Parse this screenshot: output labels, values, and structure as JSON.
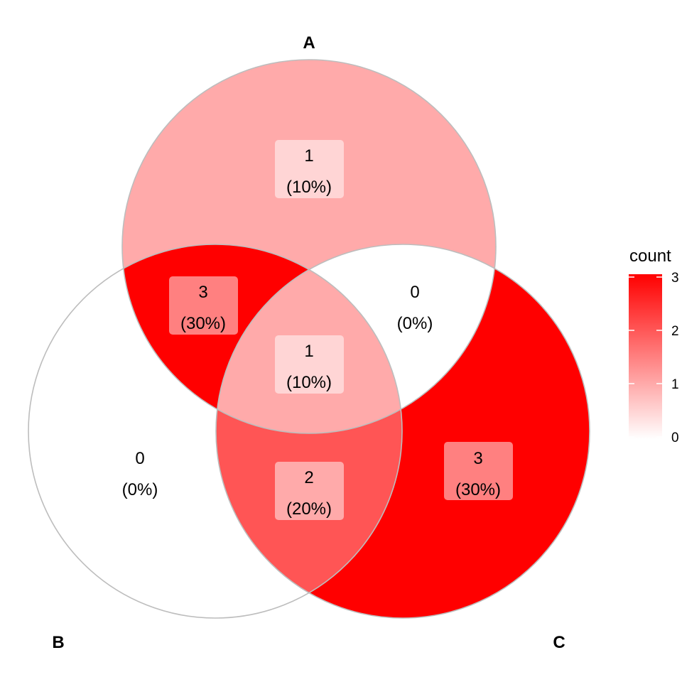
{
  "sets": [
    {
      "id": "A",
      "label": "A"
    },
    {
      "id": "B",
      "label": "B"
    },
    {
      "id": "C",
      "label": "C"
    }
  ],
  "regions": [
    {
      "key": "A-only",
      "count": "1",
      "percent": "(10%)",
      "value": 1
    },
    {
      "key": "AB-only",
      "count": "3",
      "percent": "(30%)",
      "value": 3
    },
    {
      "key": "AC-only",
      "count": "0",
      "percent": "(0%)",
      "value": 0
    },
    {
      "key": "ABC",
      "count": "1",
      "percent": "(10%)",
      "value": 1
    },
    {
      "key": "B-only",
      "count": "0",
      "percent": "(0%)",
      "value": 0
    },
    {
      "key": "BC-only",
      "count": "2",
      "percent": "(20%)",
      "value": 2
    },
    {
      "key": "C-only",
      "count": "3",
      "percent": "(30%)",
      "value": 3
    }
  ],
  "legend": {
    "title": "count",
    "min": 0,
    "max": 3,
    "ticks": [
      "3",
      "2",
      "1",
      "0"
    ],
    "low_color": "#ffffff",
    "high_color": "#ff0000"
  },
  "colors": {
    "outline": "#bdbdbd"
  }
}
